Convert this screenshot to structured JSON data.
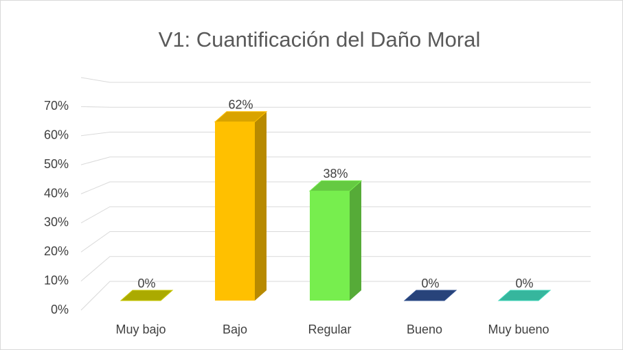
{
  "chart_data": {
    "type": "bar3d",
    "title": "V1: Cuantificación del Daño Moral",
    "categories": [
      "Muy bajo",
      "Bajo",
      "Regular",
      "Bueno",
      "Muy bueno"
    ],
    "values": [
      0,
      62,
      38,
      0,
      0
    ],
    "value_labels": [
      "0%",
      "62%",
      "38%",
      "0%",
      "0%"
    ],
    "colors": [
      "#c9c800",
      "#ffc000",
      "#77ee4e",
      "#2f4f8f",
      "#3fd6b9"
    ],
    "ylim": [
      0,
      80
    ],
    "yticks": [
      {
        "value": 0,
        "label": "0%"
      },
      {
        "value": 10,
        "label": "10%"
      },
      {
        "value": 20,
        "label": "20%"
      },
      {
        "value": 30,
        "label": "30%"
      },
      {
        "value": 40,
        "label": "40%"
      },
      {
        "value": 50,
        "label": "50%"
      },
      {
        "value": 60,
        "label": "60%"
      },
      {
        "value": 70,
        "label": "70%"
      }
    ],
    "grid": true
  }
}
